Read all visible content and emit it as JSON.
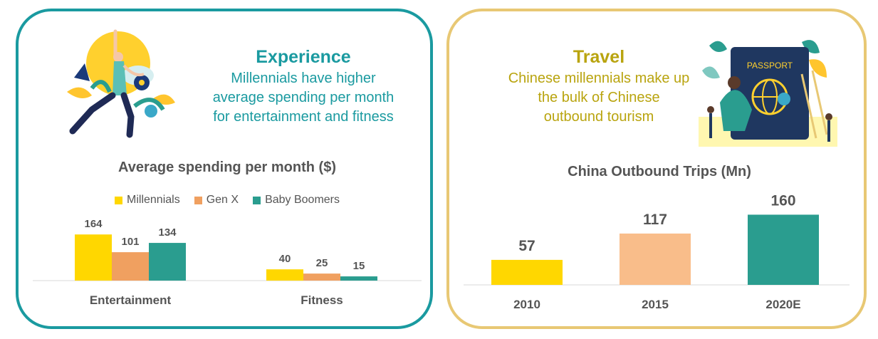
{
  "left_panel": {
    "heading": "Experience",
    "subheading_lines": [
      "Millennials have higher",
      "average spending per month",
      "for entertainment and fitness"
    ],
    "illustration": "yoga-illustration"
  },
  "right_panel": {
    "heading": "Travel",
    "subheading_lines": [
      "Chinese millennials make up",
      "the bulk of Chinese",
      "outbound tourism"
    ],
    "illustration": "passport-travel-illustration",
    "illustration_text": "PASSPORT"
  },
  "colors": {
    "teal": "#1a9aa0",
    "gold_border": "#e8c874",
    "gold_text": "#b9a40f",
    "millennials": "#ffd700",
    "genx": "#f0a060",
    "boomers": "#2a9d8f",
    "y2015": "#f9bd8a"
  },
  "chart_data": [
    {
      "type": "bar",
      "title": "Average spending per month ($)",
      "categories": [
        "Entertainment",
        "Fitness"
      ],
      "series": [
        {
          "name": "Millennials",
          "values": [
            164,
            40
          ],
          "color": "#ffd700"
        },
        {
          "name": "Gen X",
          "values": [
            101,
            25
          ],
          "color": "#f0a060"
        },
        {
          "name": "Baby Boomers",
          "values": [
            134,
            15
          ],
          "color": "#2a9d8f"
        }
      ],
      "legend": "top"
    },
    {
      "type": "bar",
      "title": "China Outbound Trips (Mn)",
      "categories": [
        "2010",
        "2015",
        "2020E"
      ],
      "values": [
        57,
        117,
        160
      ],
      "colors": [
        "#ffd700",
        "#f9bd8a",
        "#2a9d8f"
      ]
    }
  ]
}
